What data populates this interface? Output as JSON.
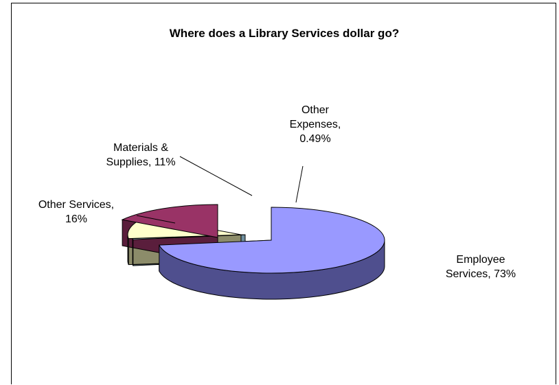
{
  "chart_data": {
    "type": "pie",
    "title": "Where does a Library Services dollar go?",
    "three_d": true,
    "exploded": true,
    "slices": [
      {
        "name": "Employee Services",
        "value": 73,
        "label_lines": [
          "Employee",
          "Services, 73%"
        ],
        "color": "#9999ff",
        "side_color": "#4f4f8e"
      },
      {
        "name": "Other Expenses",
        "value": 0.49,
        "label_lines": [
          "Other",
          "Expenses,",
          "0.49%"
        ],
        "color": "#cceeff",
        "side_color": "#6f8f9f"
      },
      {
        "name": "Materials & Supplies",
        "value": 11,
        "label_lines": [
          "Materials &",
          "Supplies, 11%"
        ],
        "color": "#ffffcc",
        "side_color": "#8c8c6a"
      },
      {
        "name": "Other Services",
        "value": 16,
        "label_lines": [
          "Other Services,",
          "16%"
        ],
        "color": "#993366",
        "side_color": "#5a1e3c"
      }
    ]
  }
}
